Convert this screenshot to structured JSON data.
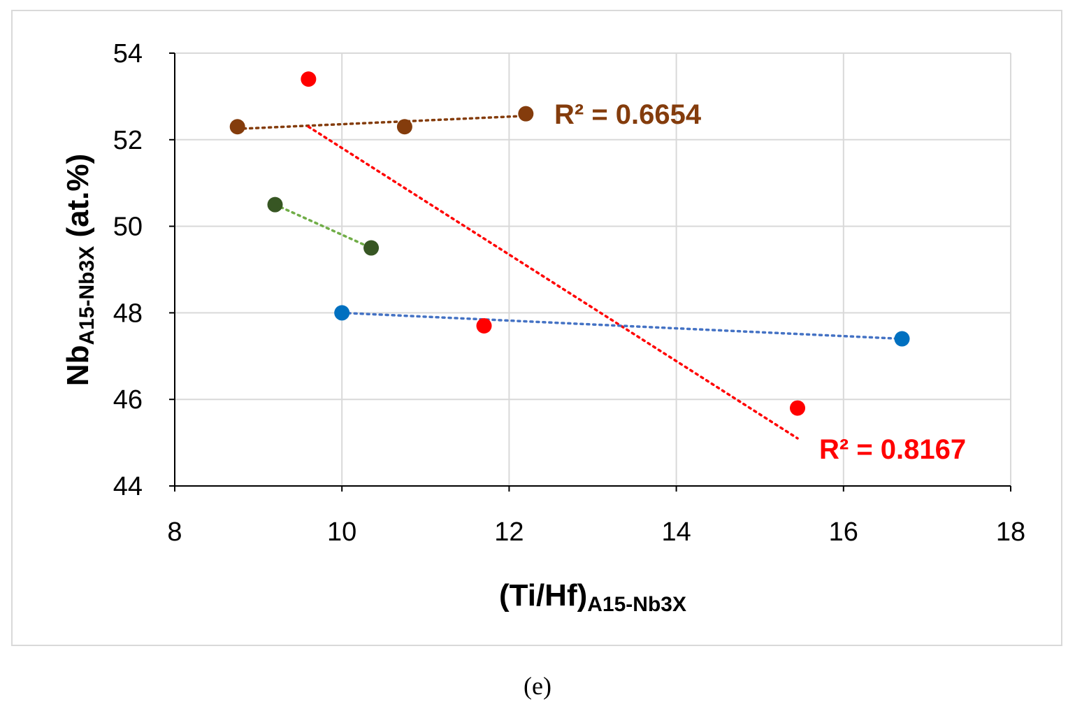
{
  "chart_data": {
    "type": "scatter",
    "title": "",
    "xlabel": "(Ti/Hf)",
    "xlabel_sub": "A15-Nb3X",
    "ylabel": "Nb",
    "ylabel_sub": "A15-Nb3X",
    "ylabel_suffix": " (at.%)",
    "xlim": [
      8,
      18
    ],
    "ylim": [
      44,
      54
    ],
    "xticks": [
      8,
      10,
      12,
      14,
      16,
      18
    ],
    "yticks": [
      44,
      46,
      48,
      50,
      52,
      54
    ],
    "grid": true,
    "series": [
      {
        "name": "brown",
        "color": "#843c0c",
        "trend_color": "#843c0c",
        "points": [
          [
            8.75,
            52.3
          ],
          [
            10.75,
            52.3
          ],
          [
            12.2,
            52.6
          ]
        ],
        "trend": [
          [
            8.75,
            52.25
          ],
          [
            12.2,
            52.55
          ]
        ],
        "r2_label": "R² = 0.6654"
      },
      {
        "name": "red",
        "color": "#ff0000",
        "trend_color": "#ff0000",
        "points": [
          [
            9.6,
            53.4
          ],
          [
            11.7,
            47.7
          ],
          [
            15.45,
            45.8
          ]
        ],
        "trend": [
          [
            9.6,
            52.3
          ],
          [
            15.45,
            45.1
          ]
        ],
        "r2_label": "R² = 0.8167"
      },
      {
        "name": "green",
        "color": "#375623",
        "trend_color": "#70ad47",
        "points": [
          [
            9.2,
            50.5
          ],
          [
            10.35,
            49.5
          ]
        ],
        "trend": [
          [
            9.2,
            50.5
          ],
          [
            10.35,
            49.5
          ]
        ]
      },
      {
        "name": "blue",
        "color": "#0070c0",
        "trend_color": "#4472c4",
        "points": [
          [
            10.0,
            48.0
          ],
          [
            16.7,
            47.4
          ]
        ],
        "trend": [
          [
            10.0,
            48.0
          ],
          [
            16.7,
            47.4
          ]
        ]
      }
    ]
  },
  "caption": "(e)"
}
